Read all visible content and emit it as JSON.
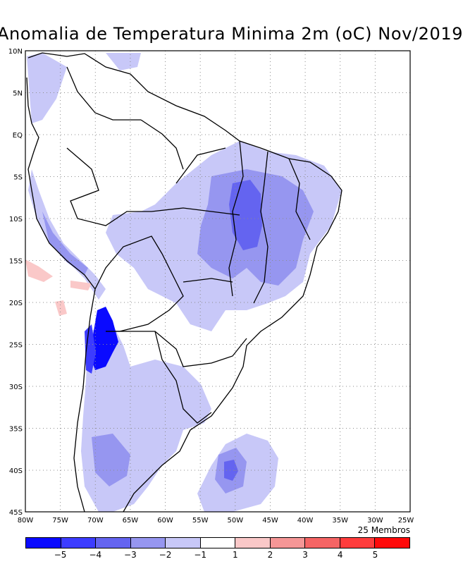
{
  "title": "Anomalia de Temperatura Minima 2m (oC) Nov/2019",
  "members_label": "25 Membros",
  "lat_labels": [
    "10N",
    "5N",
    "EQ",
    "5S",
    "10S",
    "15S",
    "20S",
    "25S",
    "30S",
    "35S",
    "40S",
    "45S"
  ],
  "lon_labels": [
    "80W",
    "75W",
    "70W",
    "65W",
    "60W",
    "55W",
    "50W",
    "45W",
    "40W",
    "35W",
    "30W",
    "25W"
  ],
  "legend": {
    "colors": [
      "#0a0aff",
      "#3c3cff",
      "#6464f0",
      "#9696f0",
      "#c8c8f8",
      "#ffffff",
      "#fac8c8",
      "#f59696",
      "#f56464",
      "#ff3c3c",
      "#ff0a0a"
    ],
    "tick_labels": [
      "−5",
      "−4",
      "−3",
      "−2",
      "−1",
      "1",
      "2",
      "3",
      "4",
      "5"
    ]
  }
}
